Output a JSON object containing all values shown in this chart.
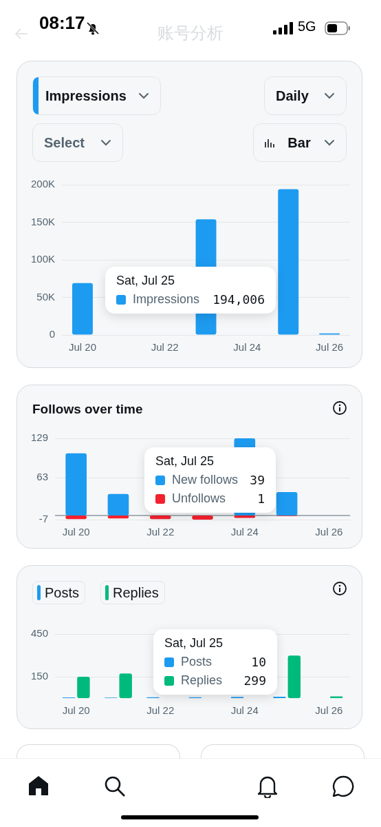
{
  "chart_data": [
    {
      "type": "other",
      "title": "账号分析",
      "annotations": [
        "08:17",
        "5G"
      ]
    },
    {
      "type": "bar",
      "categories": [
        "Jul 20",
        null,
        "Jul 22",
        null,
        "Jul 24",
        null,
        "Jul 26"
      ],
      "series": [
        {
          "name": "Impressions",
          "color": "#1d9bf0",
          "values": [
            69000,
            null,
            null,
            154000,
            null,
            194006,
            2000
          ]
        }
      ],
      "ylim": [
        0,
        200000
      ],
      "yticks": [
        0,
        {
          "value": 50000,
          "label": "50K"
        },
        {
          "value": 100000,
          "label": "100K"
        },
        {
          "value": 150000,
          "label": "150K"
        },
        {
          "value": 200000,
          "label": "200K"
        }
      ],
      "grid": "y",
      "legend": "bottom left",
      "annotations": [
        "Sat, Jul 25",
        "194,006",
        "Daily",
        "Select",
        "Bar"
      ]
    },
    {
      "type": "bar",
      "title": "Follows over time",
      "categories": [
        "Jul 20",
        null,
        "Jul 22",
        null,
        "Jul 24",
        null,
        "Jul 26"
      ],
      "series": [
        {
          "name": "New follows",
          "color": "#1d9bf0",
          "values": [
            104,
            36,
            null,
            null,
            129,
            39,
            0
          ]
        },
        {
          "name": "Unfollows",
          "color": "#f4212e",
          "values": [
            -6,
            -5,
            -6,
            -7,
            -4,
            -1,
            0
          ]
        }
      ],
      "stacked": true,
      "ylim": [
        -7,
        129
      ],
      "yticks": [
        -7,
        63,
        129
      ],
      "grid": "y",
      "legend": "bottom left",
      "ref_lines": [
        {
          "axis": "y",
          "value": 0,
          "color": "#8b98a5"
        }
      ],
      "annotations": [
        "Sat, Jul 25",
        "39",
        "1"
      ]
    },
    {
      "type": "bar",
      "categories": [
        "Jul 20",
        null,
        "Jul 22",
        null,
        "Jul 24",
        null,
        "Jul 26"
      ],
      "series": [
        {
          "name": "Posts",
          "color": "#1d9bf0",
          "values": [
            5,
            4,
            6,
            6,
            8,
            10,
            0
          ]
        },
        {
          "name": "Replies",
          "color": "#00ba7c",
          "values": [
            150,
            173,
            null,
            null,
            null,
            299,
            12
          ]
        }
      ],
      "ylim": [
        0,
        450
      ],
      "yticks": [
        150,
        450
      ],
      "grid": "y",
      "legend": "bottom left",
      "annotations": [
        "Sat, Jul 25",
        "10",
        "299"
      ]
    }
  ]
}
